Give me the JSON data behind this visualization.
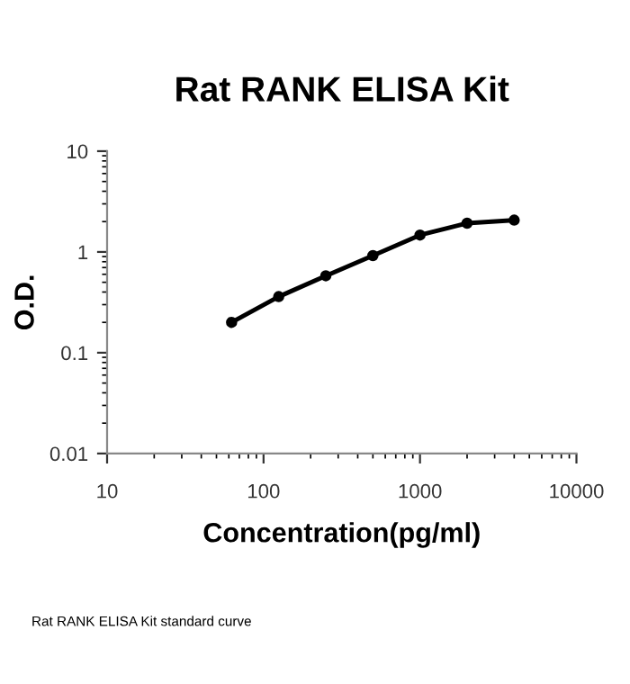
{
  "chart_data": {
    "type": "line",
    "title": "Rat RANK ELISA Kit",
    "xlabel": "Concentration(pg/ml)",
    "ylabel": "O.D.",
    "x": [
      62.5,
      125,
      250,
      500,
      1000,
      2000,
      4000
    ],
    "series": [
      {
        "color": "#000000",
        "values": [
          0.2,
          0.36,
          0.58,
          0.92,
          1.47,
          1.93,
          2.07
        ]
      }
    ],
    "log": "xy",
    "xlim": [
      10,
      10000
    ],
    "ylim": [
      0.01,
      10
    ],
    "xticks": [
      10,
      100,
      1000,
      10000
    ],
    "yticks": [
      0.01,
      0.1,
      1,
      10
    ],
    "marker": "circle",
    "line_style": "solid",
    "grid": false,
    "legend": false,
    "annotations": [
      "Rat RANK ELISA Kit standard curve"
    ]
  }
}
